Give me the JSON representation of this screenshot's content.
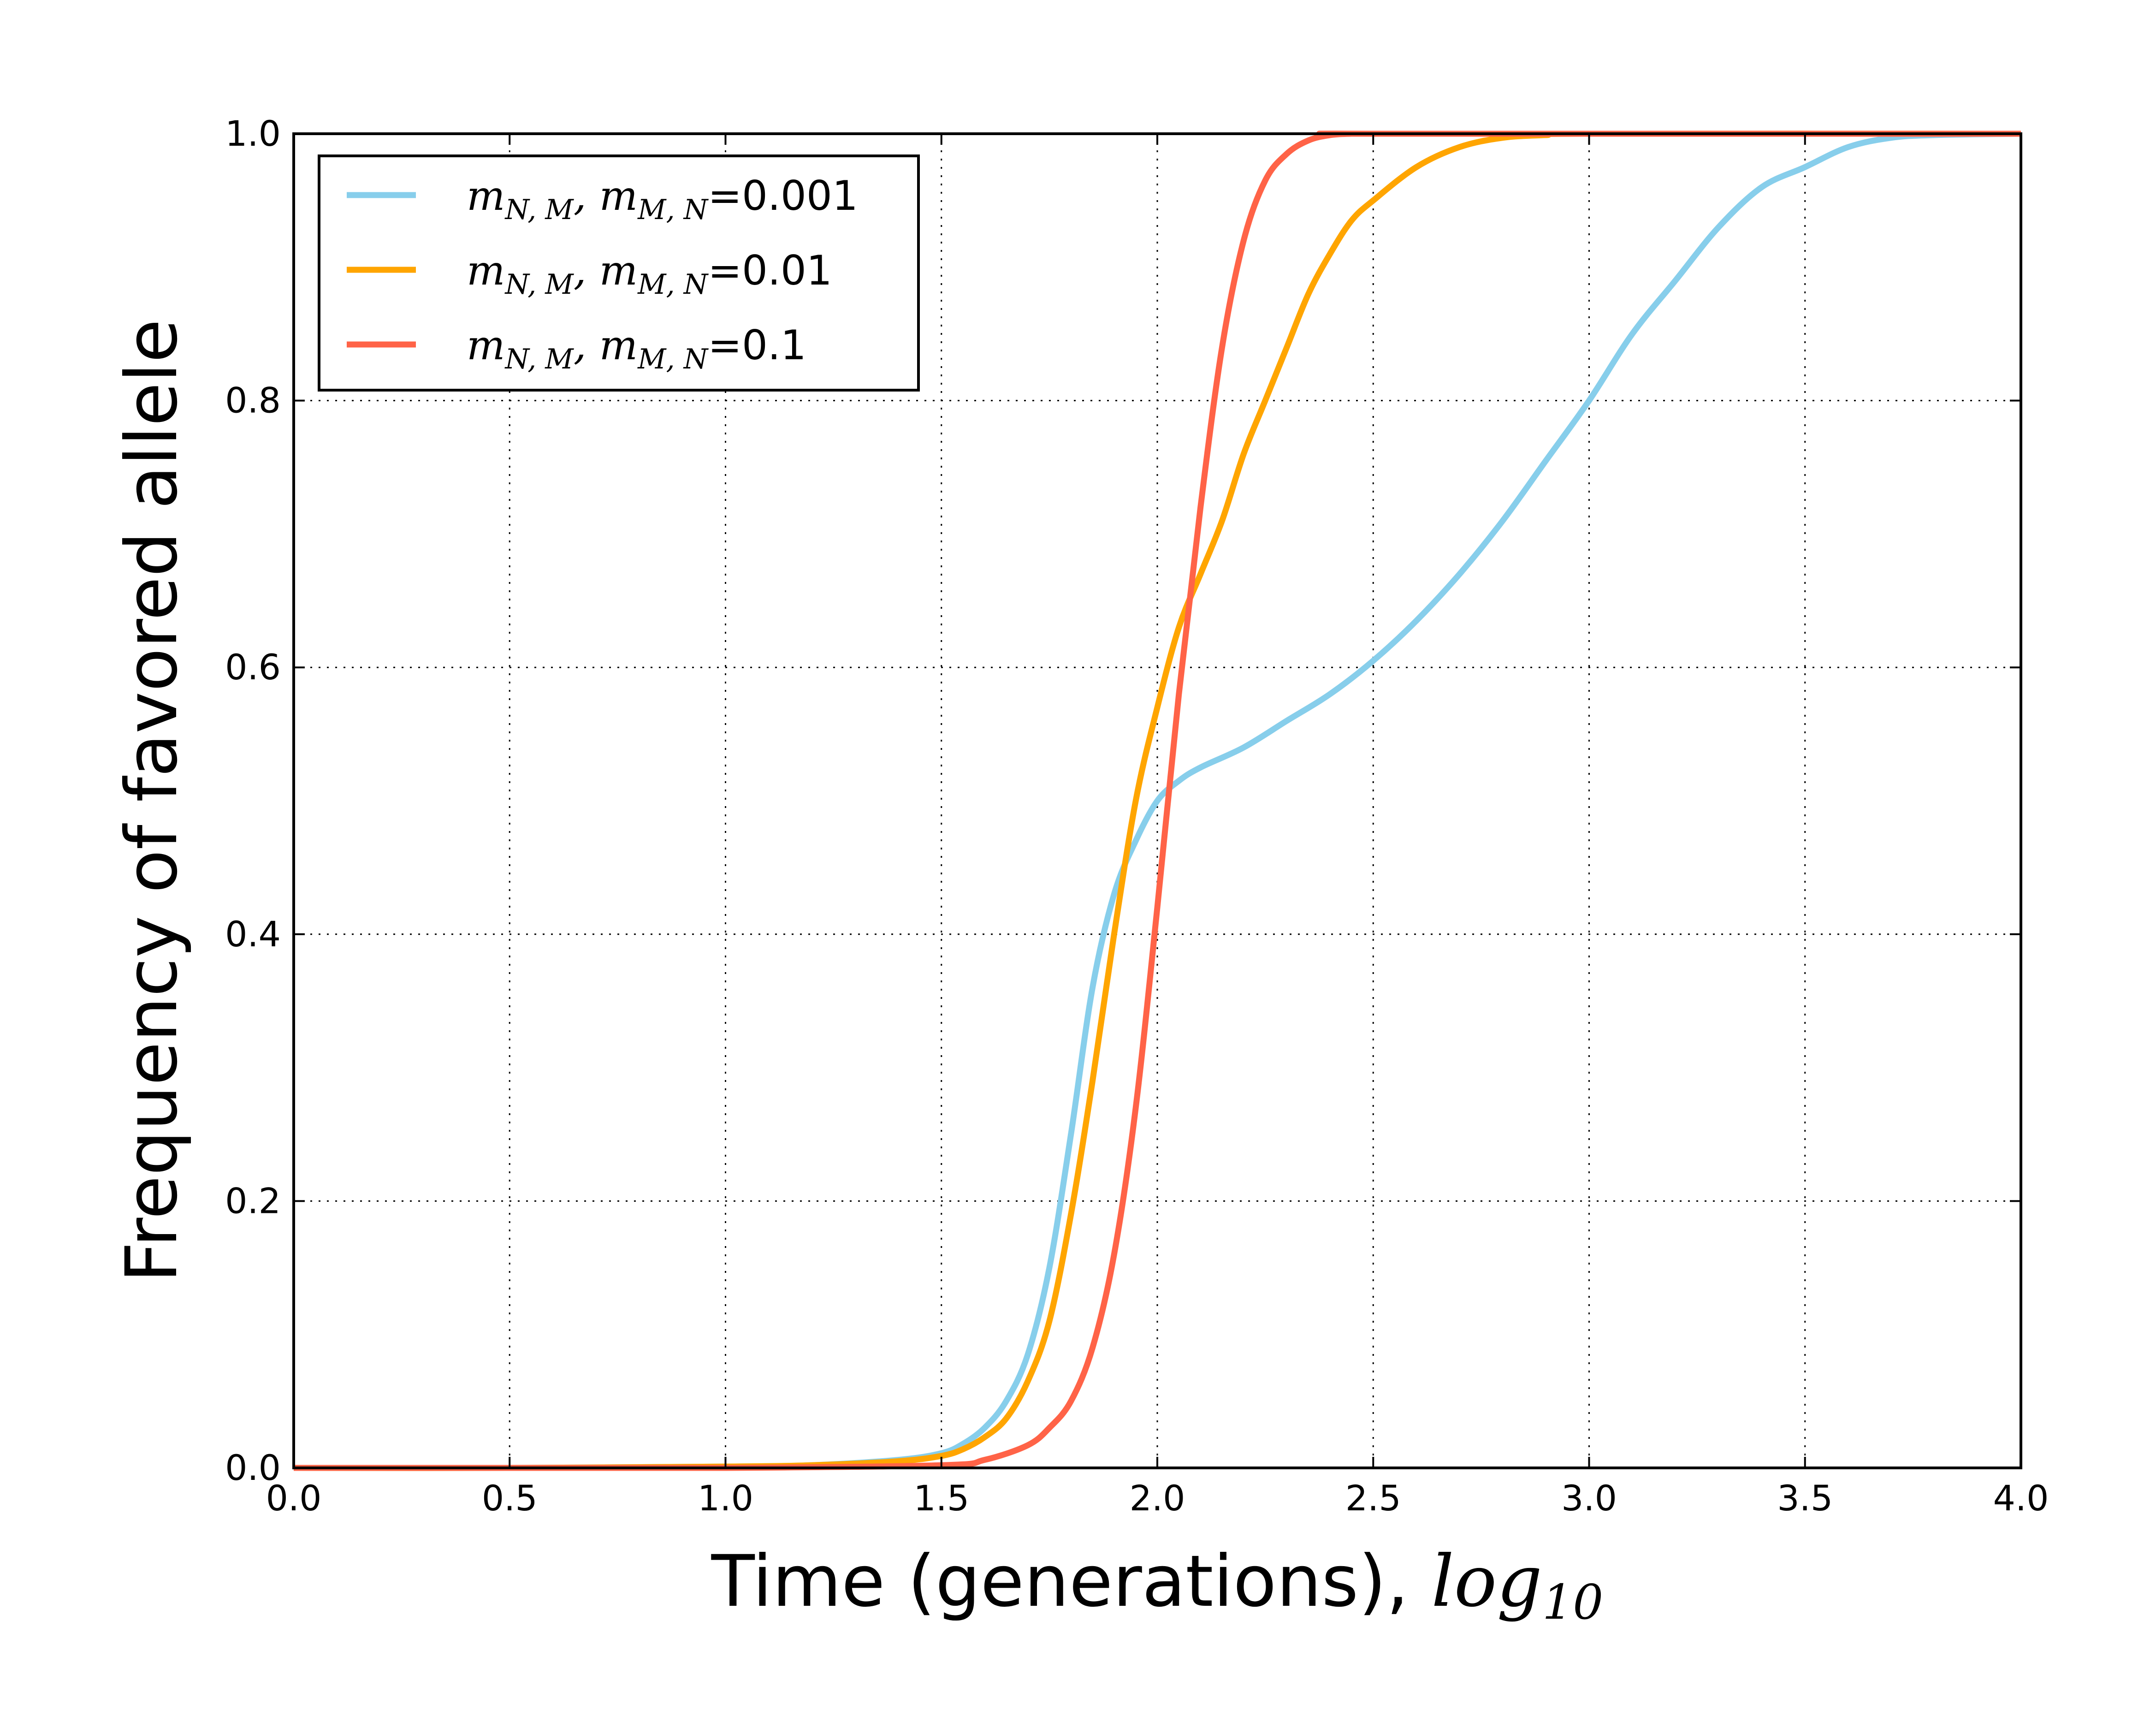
{
  "chart_data": {
    "type": "line",
    "title": "",
    "xlabel": {
      "text": "Time (generations), ",
      "math": "log",
      "math_sub": "10"
    },
    "ylabel": "Frequency of favored allele",
    "xlim": [
      0,
      4
    ],
    "ylim": [
      0,
      1
    ],
    "x_ticks": [
      "0.0",
      "0.5",
      "1.0",
      "1.5",
      "2.0",
      "2.5",
      "3.0",
      "3.5",
      "4.0"
    ],
    "y_ticks": [
      "0.0",
      "0.2",
      "0.4",
      "0.6",
      "0.8",
      "1.0"
    ],
    "grid": true,
    "legend_position": "top-left",
    "series": [
      {
        "name": "m_{N,M}, m_{M,N} = 0.001",
        "legend": {
          "m": "m",
          "sub1": "N, M",
          "sep": ", ",
          "sub2": "M, N",
          "eq": "=",
          "value": "0.001"
        },
        "color": "#87CEEB",
        "x": [
          0.0,
          0.5,
          1.0,
          1.2,
          1.4,
          1.5,
          1.55,
          1.6,
          1.65,
          1.7,
          1.75,
          1.8,
          1.85,
          1.9,
          1.95,
          2.0,
          2.05,
          2.1,
          2.2,
          2.3,
          2.4,
          2.5,
          2.6,
          2.7,
          2.8,
          2.9,
          3.0,
          3.1,
          3.2,
          3.3,
          3.4,
          3.5,
          3.6,
          3.7,
          3.8,
          4.0
        ],
        "y": [
          0.0,
          0.0,
          0.001,
          0.002,
          0.006,
          0.011,
          0.018,
          0.03,
          0.05,
          0.085,
          0.15,
          0.25,
          0.36,
          0.43,
          0.47,
          0.5,
          0.515,
          0.525,
          0.54,
          0.56,
          0.58,
          0.605,
          0.635,
          0.67,
          0.71,
          0.755,
          0.8,
          0.85,
          0.89,
          0.93,
          0.96,
          0.975,
          0.99,
          0.997,
          0.999,
          1.0
        ]
      },
      {
        "name": "m_{N,M}, m_{M,N} = 0.01",
        "legend": {
          "m": "m",
          "sub1": "N, M",
          "sep": ", ",
          "sub2": "M, N",
          "eq": "=",
          "value": "0.01"
        },
        "color": "#FFA500",
        "x": [
          0.0,
          0.5,
          1.0,
          1.2,
          1.4,
          1.5,
          1.55,
          1.6,
          1.65,
          1.7,
          1.75,
          1.8,
          1.85,
          1.9,
          1.95,
          2.0,
          2.05,
          2.1,
          2.15,
          2.2,
          2.25,
          2.3,
          2.35,
          2.4,
          2.45,
          2.5,
          2.6,
          2.7,
          2.8,
          2.9,
          3.0,
          4.0
        ],
        "y": [
          0.0,
          0.0,
          0.001,
          0.002,
          0.005,
          0.009,
          0.014,
          0.023,
          0.037,
          0.065,
          0.11,
          0.19,
          0.29,
          0.4,
          0.5,
          0.57,
          0.63,
          0.67,
          0.71,
          0.76,
          0.8,
          0.84,
          0.88,
          0.91,
          0.935,
          0.95,
          0.975,
          0.99,
          0.997,
          0.999,
          1.0,
          1.0
        ]
      },
      {
        "name": "m_{N,M}, m_{M,N} = 0.1",
        "legend": {
          "m": "m",
          "sub1": "N, M",
          "sep": ", ",
          "sub2": "M, N",
          "eq": "=",
          "value": "0.1"
        },
        "color": "#FF6347",
        "x": [
          0.0,
          0.5,
          1.0,
          1.5,
          1.6,
          1.7,
          1.75,
          1.8,
          1.85,
          1.9,
          1.95,
          2.0,
          2.05,
          2.1,
          2.15,
          2.2,
          2.25,
          2.3,
          2.35,
          2.4,
          2.45,
          2.5,
          4.0
        ],
        "y": [
          0.0,
          0.0,
          0.0,
          0.002,
          0.006,
          0.017,
          0.03,
          0.05,
          0.09,
          0.16,
          0.27,
          0.42,
          0.58,
          0.72,
          0.84,
          0.92,
          0.965,
          0.985,
          0.995,
          0.999,
          1.0,
          1.0,
          1.0
        ]
      }
    ]
  }
}
